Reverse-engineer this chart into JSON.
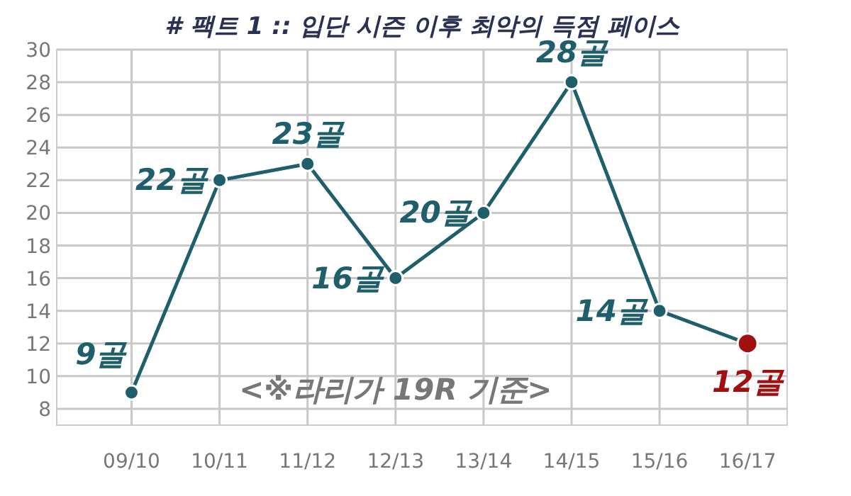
{
  "chart_data": {
    "type": "line",
    "title": "# 팩트 1 :: 입단 시즌 이후 최악의 득점 페이스",
    "categories": [
      "09/10",
      "10/11",
      "11/12",
      "12/13",
      "13/14",
      "14/15",
      "15/16",
      "16/17"
    ],
    "series": [
      {
        "color": "#1f5f6b",
        "values": [
          9,
          22,
          23,
          16,
          20,
          28,
          14,
          12
        ],
        "colors": [
          "#1f5f6b",
          "#1f5f6b",
          "#1f5f6b",
          "#1f5f6b",
          "#1f5f6b",
          "#1f5f6b",
          "#1f5f6b",
          "#a01010"
        ],
        "value_labels": [
          "9골",
          "22골",
          "23골",
          "16골",
          "20골",
          "28골",
          "14골",
          "12골"
        ]
      }
    ],
    "ylim": [
      7,
      30
    ],
    "yticks": [
      8,
      10,
      12,
      14,
      16,
      18,
      20,
      22,
      24,
      26,
      28,
      30
    ],
    "grid": true,
    "marker": "circle",
    "annotations": [
      "<※라리가 19R 기준>"
    ]
  }
}
